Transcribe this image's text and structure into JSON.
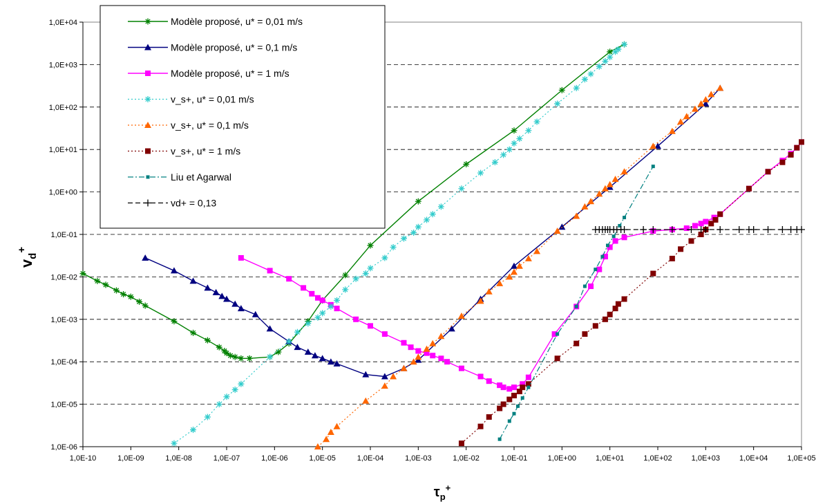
{
  "chart_data": {
    "type": "line",
    "xscale": "log",
    "yscale": "log",
    "xlim": [
      1e-10,
      100000
    ],
    "ylim": [
      1e-06,
      10000
    ],
    "xlabel": "τp+",
    "ylabel": "vd+",
    "grid": {
      "y_major": true,
      "style": "dashed"
    },
    "legend_position": "top-left",
    "x_tick_labels": [
      "1,0E-10",
      "1,0E-09",
      "1,0E-08",
      "1,0E-07",
      "1,0E-06",
      "1,0E-05",
      "1,0E-04",
      "1,0E-03",
      "1,0E-02",
      "1,0E-01",
      "1,0E+00",
      "1,0E+01",
      "1,0E+02",
      "1,0E+03",
      "1,0E+04",
      "1,0E+05"
    ],
    "y_tick_labels": [
      "1,0E-06",
      "1,0E-05",
      "1,0E-04",
      "1,0E-03",
      "1,0E-02",
      "1,0E-01",
      "1,0E+00",
      "1,0E+01",
      "1,0E+02",
      "1,0E+03",
      "1,0E+04"
    ],
    "series": [
      {
        "name": "Modèle proposé, u* = 0,01 m/s",
        "color": "#008000",
        "marker": "star",
        "line": "solid",
        "x": [
          1e-10,
          2e-10,
          3e-10,
          5e-10,
          7e-10,
          1e-09,
          1.5e-09,
          2e-09,
          8e-09,
          2e-08,
          4e-08,
          7e-08,
          9e-08,
          1e-07,
          1.2e-07,
          1.5e-07,
          2e-07,
          3e-07,
          8e-07,
          1.2e-06,
          2e-06,
          5e-06,
          1e-05,
          3e-05,
          0.0001,
          0.001,
          0.01,
          0.1,
          1,
          10,
          20
        ],
        "y": [
          0.012,
          0.008,
          0.0065,
          0.0048,
          0.0039,
          0.0034,
          0.0026,
          0.0021,
          0.0009,
          0.00048,
          0.00032,
          0.00022,
          0.00018,
          0.00016,
          0.00014,
          0.00013,
          0.00012,
          0.00012,
          0.00013,
          0.00017,
          0.00027,
          0.0009,
          0.0028,
          0.011,
          0.055,
          0.6,
          4.5,
          28,
          250,
          2000,
          3000
        ]
      },
      {
        "name": "Modèle proposé, u* = 0,1 m/s",
        "color": "#000080",
        "marker": "triangle",
        "line": "solid",
        "x": [
          2e-09,
          8e-09,
          2e-08,
          4e-08,
          6e-08,
          8e-08,
          1e-07,
          1.5e-07,
          2e-07,
          4e-07,
          8e-07,
          2e-06,
          3e-06,
          5e-06,
          7e-06,
          1e-05,
          1.5e-05,
          2e-05,
          8e-05,
          0.0002,
          0.0005,
          0.001,
          0.005,
          0.02,
          0.1,
          1,
          10,
          100,
          1000,
          2000
        ],
        "y": [
          0.028,
          0.014,
          0.008,
          0.0055,
          0.0043,
          0.0035,
          0.003,
          0.0023,
          0.0018,
          0.0013,
          0.0006,
          0.0003,
          0.00022,
          0.00017,
          0.00014,
          0.00012,
          0.0001,
          9e-05,
          5e-05,
          4.5e-05,
          7e-05,
          0.00011,
          0.0006,
          0.003,
          0.018,
          0.15,
          1.3,
          12,
          120,
          280
        ]
      },
      {
        "name": "Modèle proposé, u* = 1 m/s",
        "color": "#ff00ff",
        "marker": "square",
        "line": "solid",
        "x": [
          2e-07,
          8e-07,
          2e-06,
          4e-06,
          6e-06,
          8e-06,
          1e-05,
          1.5e-05,
          2e-05,
          5e-05,
          0.0001,
          0.0002,
          0.0005,
          0.0007,
          0.001,
          0.0015,
          0.002,
          0.003,
          0.004,
          0.008,
          0.02,
          0.03,
          0.05,
          0.06,
          0.08,
          0.1,
          0.15,
          0.2,
          0.7,
          2,
          4,
          6,
          8,
          10,
          13,
          20,
          80,
          200,
          400,
          600,
          800,
          1000,
          1500,
          2000,
          8000,
          20000,
          40000,
          60000,
          80000,
          100000
        ],
        "y": [
          0.028,
          0.014,
          0.009,
          0.0055,
          0.004,
          0.0032,
          0.0028,
          0.0022,
          0.0018,
          0.001,
          0.0007,
          0.00045,
          0.00028,
          0.00022,
          0.00018,
          0.00016,
          0.00014,
          0.00012,
          0.0001,
          7e-05,
          4.5e-05,
          3.5e-05,
          2.8e-05,
          2.5e-05,
          2.3e-05,
          2.5e-05,
          3e-05,
          4.3e-05,
          0.00045,
          0.002,
          0.006,
          0.015,
          0.03,
          0.05,
          0.07,
          0.085,
          0.12,
          0.13,
          0.14,
          0.16,
          0.18,
          0.2,
          0.25,
          0.3,
          1.2,
          3,
          5.5,
          8,
          11,
          15
        ]
      },
      {
        "name": "v_s+, u* = 0,01 m/s",
        "color": "#33cccc",
        "marker": "star",
        "line": "dotted",
        "x": [
          8e-09,
          2e-08,
          4e-08,
          7e-08,
          1e-07,
          1.5e-07,
          2e-07,
          8e-07,
          2e-06,
          3e-06,
          5e-06,
          8e-06,
          1e-05,
          1.5e-05,
          2e-05,
          3e-05,
          5e-05,
          8e-05,
          0.0001,
          0.0002,
          0.0003,
          0.0005,
          0.0008,
          0.001,
          0.0015,
          0.002,
          0.003,
          0.008,
          0.02,
          0.04,
          0.06,
          0.08,
          0.1,
          0.13,
          0.2,
          0.3,
          0.8,
          2,
          3,
          4,
          6,
          8,
          10,
          13,
          15,
          20
        ],
        "y": [
          1.2e-06,
          2.5e-06,
          5e-06,
          1e-05,
          1.5e-05,
          2.2e-05,
          3e-05,
          0.00013,
          0.0003,
          0.0005,
          0.0008,
          0.0011,
          0.0014,
          0.002,
          0.0028,
          0.005,
          0.009,
          0.012,
          0.016,
          0.028,
          0.05,
          0.08,
          0.11,
          0.15,
          0.22,
          0.3,
          0.45,
          1.2,
          2.8,
          5,
          7.5,
          10,
          14,
          18,
          28,
          45,
          120,
          280,
          450,
          600,
          900,
          1200,
          1500,
          2000,
          2300,
          3000
        ]
      },
      {
        "name": "v_s+, u* = 0,1 m/s",
        "color": "#ff6600",
        "marker": "triangle",
        "line": "dotted",
        "x": [
          8e-06,
          1.2e-05,
          1.5e-05,
          2e-05,
          8e-05,
          0.0002,
          0.0003,
          0.0005,
          0.0008,
          0.001,
          0.0015,
          0.002,
          0.003,
          0.008,
          0.02,
          0.03,
          0.05,
          0.08,
          0.1,
          0.13,
          0.2,
          0.3,
          0.8,
          2,
          3,
          4,
          6,
          8,
          10,
          13,
          20,
          80,
          200,
          300,
          400,
          600,
          800,
          1000,
          1300,
          2000
        ],
        "y": [
          1e-06,
          1.5e-06,
          2.2e-06,
          3e-06,
          1.2e-05,
          2.7e-05,
          4.5e-05,
          7e-05,
          0.0001,
          0.00013,
          0.0002,
          0.00027,
          0.0004,
          0.0012,
          0.0027,
          0.0045,
          0.007,
          0.01,
          0.013,
          0.018,
          0.027,
          0.04,
          0.12,
          0.27,
          0.45,
          0.6,
          0.9,
          1.2,
          1.5,
          2,
          3,
          12,
          27,
          45,
          60,
          90,
          120,
          150,
          200,
          280
        ]
      },
      {
        "name": "v_s+, u* = 1 m/s",
        "color": "#800000",
        "marker": "square",
        "line": "dotted",
        "x": [
          0.008,
          0.02,
          0.03,
          0.05,
          0.06,
          0.08,
          0.1,
          0.13,
          0.15,
          0.2,
          0.8,
          2,
          3,
          5,
          8,
          10,
          13,
          15,
          20,
          80,
          200,
          300,
          500,
          800,
          1000,
          1300,
          1600,
          2000,
          8000,
          20000,
          40000,
          60000,
          80000,
          100000
        ],
        "y": [
          1.2e-06,
          3e-06,
          5e-06,
          8e-06,
          1e-05,
          1.3e-05,
          1.6e-05,
          2e-05,
          2.5e-05,
          3e-05,
          0.00012,
          0.00027,
          0.00045,
          0.0007,
          0.001,
          0.0013,
          0.0018,
          0.0023,
          0.003,
          0.012,
          0.027,
          0.045,
          0.07,
          0.1,
          0.13,
          0.18,
          0.22,
          0.3,
          1.2,
          3,
          5,
          7.5,
          11,
          15
        ]
      },
      {
        "name": "Liu et Agarwal",
        "color": "#008080",
        "marker": "smallsquare",
        "line": "dashdot",
        "x": [
          0.05,
          0.08,
          0.1,
          0.12,
          0.15,
          0.2,
          0.8,
          2,
          3,
          5,
          7,
          9,
          12,
          16,
          20,
          80
        ],
        "y": [
          1.5e-06,
          4e-06,
          6e-06,
          9e-06,
          1.4e-05,
          2.5e-05,
          0.00045,
          0.002,
          0.006,
          0.015,
          0.03,
          0.055,
          0.09,
          0.16,
          0.25,
          4
        ]
      },
      {
        "name": "vd+ = 0,13",
        "color": "#000000",
        "marker": "plus",
        "line": "dashed",
        "x": [
          5,
          6,
          7,
          8,
          9,
          10,
          12,
          14,
          17,
          20,
          50,
          80,
          200,
          500,
          800,
          1000,
          2000,
          5000,
          8000,
          10000,
          20000,
          40000,
          60000,
          80000,
          100000
        ],
        "y": [
          0.13,
          0.13,
          0.13,
          0.13,
          0.13,
          0.13,
          0.13,
          0.13,
          0.13,
          0.13,
          0.13,
          0.13,
          0.13,
          0.13,
          0.13,
          0.13,
          0.13,
          0.13,
          0.13,
          0.13,
          0.13,
          0.13,
          0.13,
          0.13,
          0.13
        ]
      }
    ]
  }
}
